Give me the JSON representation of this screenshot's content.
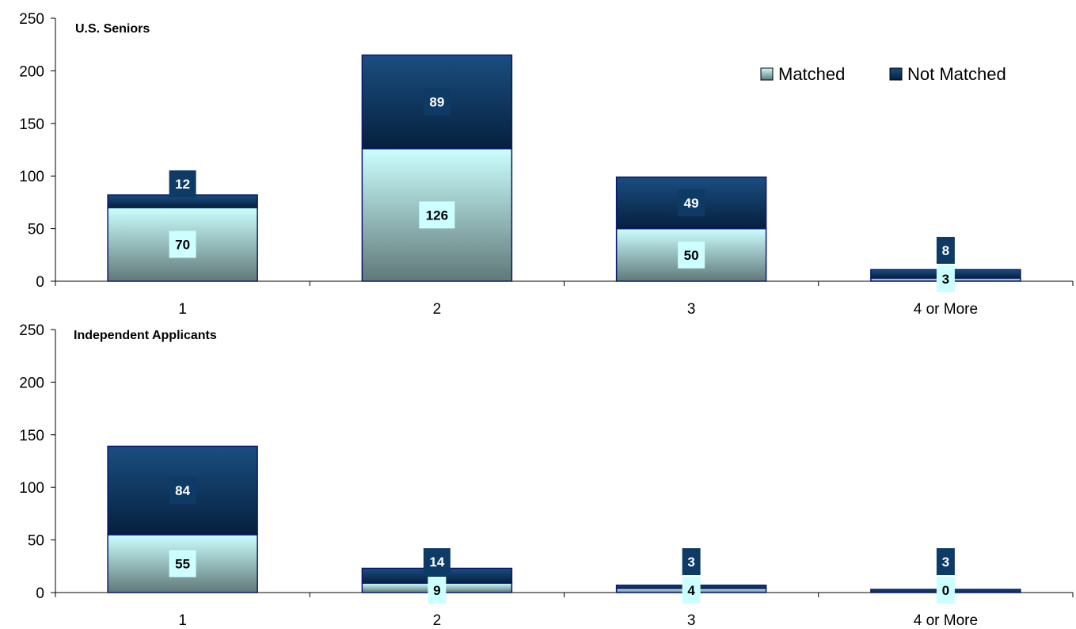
{
  "colors": {
    "matched_top": "#ccffff",
    "matched_bottom": "#607878",
    "not_matched_top": "#1a4e80",
    "not_matched_bottom": "#06203e",
    "bar_outline": "#0a1a6e",
    "axis": "#000000",
    "matched_label_bg": "#ccffff",
    "not_matched_label_bg": "#0e3a66"
  },
  "legend": {
    "placement": "top-right of first chart",
    "items": [
      {
        "name": "Matched",
        "swatch": "matched"
      },
      {
        "name": "Not Matched",
        "swatch": "not_matched"
      }
    ]
  },
  "chart_data": [
    {
      "type": "bar",
      "stacked": true,
      "title": "U.S. Seniors",
      "categories": [
        "1",
        "2",
        "3",
        "4 or More"
      ],
      "series": [
        {
          "name": "Matched",
          "values": [
            70,
            126,
            50,
            3
          ]
        },
        {
          "name": "Not Matched",
          "values": [
            12,
            89,
            49,
            8
          ]
        }
      ],
      "ylim": [
        0,
        250
      ],
      "yticks": [
        0,
        50,
        100,
        150,
        200,
        250
      ],
      "grid": false
    },
    {
      "type": "bar",
      "stacked": true,
      "title": "Independent Applicants",
      "categories": [
        "1",
        "2",
        "3",
        "4 or More"
      ],
      "series": [
        {
          "name": "Matched",
          "values": [
            55,
            9,
            4,
            0
          ]
        },
        {
          "name": "Not Matched",
          "values": [
            84,
            14,
            3,
            3
          ]
        }
      ],
      "ylim": [
        0,
        250
      ],
      "yticks": [
        0,
        50,
        100,
        150,
        200,
        250
      ],
      "grid": false
    }
  ]
}
